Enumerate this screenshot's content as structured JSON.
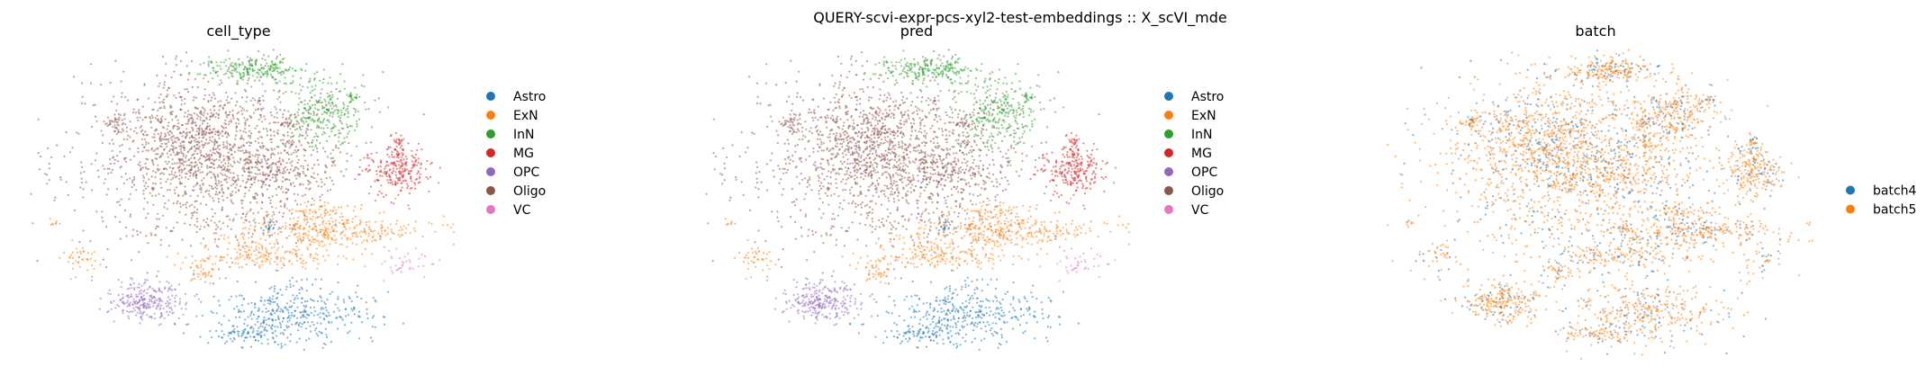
{
  "figure": {
    "suptitle": "QUERY-scvi-expr-pcs-xyl2-test-embeddings :: X_scVI_mde"
  },
  "chart_data": [
    {
      "type": "scatter",
      "title": "cell_type",
      "xlabel": "",
      "ylabel": "",
      "grid": false,
      "axes_visible": false,
      "legend_position": "right",
      "categories": [
        {
          "name": "Astro",
          "color": "#1f77b4"
        },
        {
          "name": "ExN",
          "color": "#ff7f0e"
        },
        {
          "name": "InN",
          "color": "#2ca02c"
        },
        {
          "name": "MG",
          "color": "#d62728"
        },
        {
          "name": "OPC",
          "color": "#9467bd"
        },
        {
          "name": "Oligo",
          "color": "#8c564b"
        },
        {
          "name": "VC",
          "color": "#e377c2"
        }
      ]
    },
    {
      "type": "scatter",
      "title": "pred",
      "xlabel": "",
      "ylabel": "",
      "grid": false,
      "axes_visible": false,
      "legend_position": "right",
      "categories": [
        {
          "name": "Astro",
          "color": "#1f77b4"
        },
        {
          "name": "ExN",
          "color": "#ff7f0e"
        },
        {
          "name": "InN",
          "color": "#2ca02c"
        },
        {
          "name": "MG",
          "color": "#d62728"
        },
        {
          "name": "OPC",
          "color": "#9467bd"
        },
        {
          "name": "Oligo",
          "color": "#8c564b"
        },
        {
          "name": "VC",
          "color": "#e377c2"
        }
      ]
    },
    {
      "type": "scatter",
      "title": "batch",
      "xlabel": "",
      "ylabel": "",
      "grid": false,
      "axes_visible": false,
      "legend_position": "right",
      "categories": [
        {
          "name": "batch4",
          "color": "#1f77b4"
        },
        {
          "name": "batch5",
          "color": "#ff7f0e"
        }
      ]
    }
  ]
}
